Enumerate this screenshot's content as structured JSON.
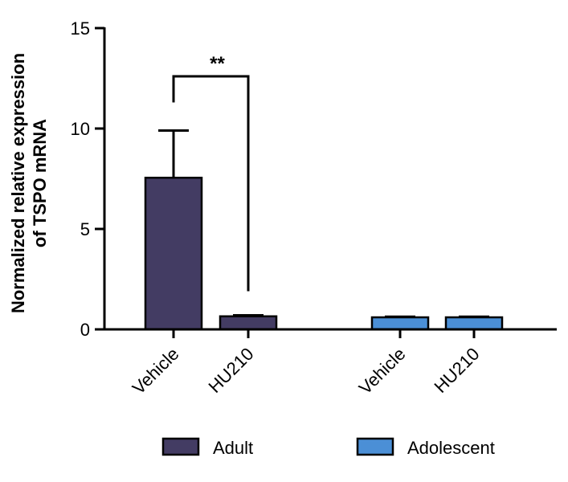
{
  "chart_data": {
    "type": "bar",
    "title": "",
    "ylabel_lines": [
      "Normalized relative expression",
      "of TSPO mRNA"
    ],
    "xlabel": "",
    "ylim": [
      0,
      15
    ],
    "yticks": [
      0,
      5,
      10,
      15
    ],
    "categories": [
      "Vehicle",
      "HU210",
      "Vehicle",
      "HU210"
    ],
    "bars": [
      {
        "group": "Adult",
        "category": "Vehicle",
        "value": 7.55,
        "error": 2.35
      },
      {
        "group": "Adult",
        "category": "HU210",
        "value": 0.65,
        "error": 0.05
      },
      {
        "group": "Adolescent",
        "category": "Vehicle",
        "value": 0.6,
        "error": 0.03
      },
      {
        "group": "Adolescent",
        "category": "HU210",
        "value": 0.6,
        "error": 0.03
      }
    ],
    "series": [
      {
        "name": "Adult",
        "color": "#433c63"
      },
      {
        "name": "Adolescent",
        "color": "#4b8fd6"
      }
    ],
    "significance": {
      "label": "**",
      "between": [
        0,
        1
      ],
      "y": 12.6,
      "left_end": 11.3,
      "right_end": 1.9
    },
    "legend": {
      "placement": "bottom"
    },
    "grid": false
  }
}
